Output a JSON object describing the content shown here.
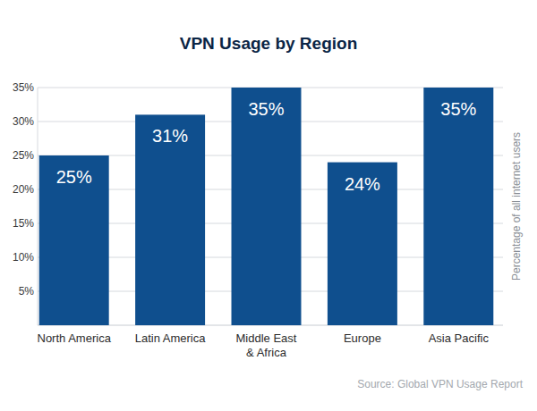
{
  "chart_data": {
    "type": "bar",
    "title": "VPN Usage by Region",
    "y_label": "Percentage of all internet users",
    "source": "Source: Global VPN Usage Report",
    "categories": [
      "North America",
      "Latin America",
      "Middle East & Africa",
      "Europe",
      "Asia Pacific"
    ],
    "values": [
      25,
      31,
      35,
      24,
      35
    ],
    "value_labels": [
      "25%",
      "31%",
      "35%",
      "24%",
      "35%"
    ],
    "color": "#0f4f8e",
    "ylim": [
      0,
      35
    ],
    "yticks": [
      {
        "value": 5,
        "label": "5%"
      },
      {
        "value": 10,
        "label": "10%"
      },
      {
        "value": 15,
        "label": "15%"
      },
      {
        "value": 20,
        "label": "20%"
      },
      {
        "value": 25,
        "label": "25%"
      },
      {
        "value": 30,
        "label": "30%"
      },
      {
        "value": 35,
        "label": "35%"
      }
    ],
    "grid": true,
    "data_labels": true
  }
}
